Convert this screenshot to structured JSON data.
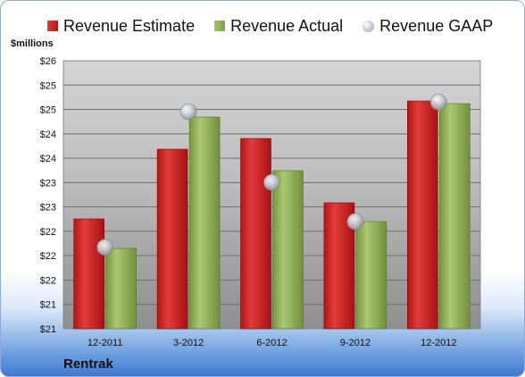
{
  "chart_data": {
    "type": "bar",
    "units_label": "$millions",
    "company": "Rentrak",
    "categories": [
      "12-2011",
      "3-2012",
      "6-2012",
      "9-2012",
      "12-2012"
    ],
    "y_tick_labels": [
      "$21",
      "$21",
      "$22",
      "$22",
      "$22",
      "$23",
      "$23",
      "$24",
      "$24",
      "$25",
      "$25",
      "$26"
    ],
    "ylim": [
      20.75,
      25.75
    ],
    "legend_position": "top",
    "grid": true,
    "series": [
      {
        "name": "Revenue Estimate",
        "kind": "bar",
        "color": "#c81e1e",
        "values": [
          22.8,
          24.1,
          24.3,
          23.1,
          25.0
        ]
      },
      {
        "name": "Revenue Actual",
        "kind": "bar",
        "color": "#8fae57",
        "values": [
          22.25,
          24.7,
          23.7,
          22.75,
          24.95
        ]
      },
      {
        "name": "Revenue GAAP",
        "kind": "marker",
        "color": "#b5b9c3",
        "values": [
          22.27,
          24.8,
          23.48,
          22.75,
          24.98
        ]
      }
    ]
  }
}
